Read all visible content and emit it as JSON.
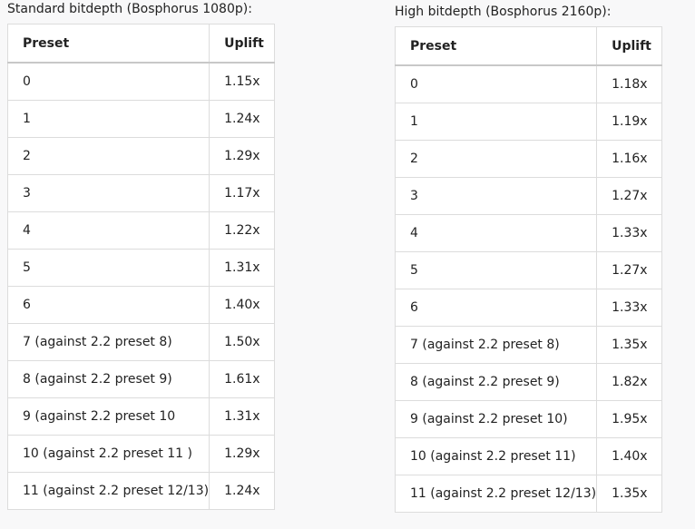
{
  "tables": [
    {
      "caption": "Standard bitdepth (Bosphorus 1080p):",
      "header": [
        "Preset",
        "Uplift"
      ],
      "rows": [
        [
          "0",
          "1.15x"
        ],
        [
          "1",
          "1.24x"
        ],
        [
          "2",
          "1.29x"
        ],
        [
          "3",
          "1.17x"
        ],
        [
          "4",
          "1.22x"
        ],
        [
          "5",
          "1.31x"
        ],
        [
          "6",
          "1.40x"
        ],
        [
          "7 (against 2.2 preset 8)",
          "1.50x"
        ],
        [
          "8 (against 2.2 preset 9)",
          "1.61x"
        ],
        [
          "9 (against 2.2 preset 10",
          "1.31x"
        ],
        [
          "10 (against 2.2 preset 11 )",
          "1.29x"
        ],
        [
          "11 (against 2.2 preset 12/13)",
          "1.24x"
        ]
      ]
    },
    {
      "caption": "High bitdepth (Bosphorus 2160p):",
      "header": [
        "Preset",
        "Uplift"
      ],
      "rows": [
        [
          "0",
          "1.18x"
        ],
        [
          "1",
          "1.19x"
        ],
        [
          "2",
          "1.16x"
        ],
        [
          "3",
          "1.27x"
        ],
        [
          "4",
          "1.33x"
        ],
        [
          "5",
          "1.27x"
        ],
        [
          "6",
          "1.33x"
        ],
        [
          "7 (against 2.2 preset 8)",
          "1.35x"
        ],
        [
          "8 (against 2.2 preset 9)",
          "1.82x"
        ],
        [
          "9 (against 2.2 preset 10)",
          "1.95x"
        ],
        [
          "10 (against 2.2 preset 11)",
          "1.40x"
        ],
        [
          "11 (against 2.2 preset 12/13)",
          "1.35x"
        ]
      ]
    }
  ]
}
